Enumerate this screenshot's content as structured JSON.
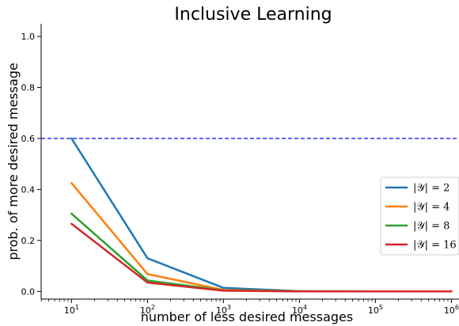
{
  "chart_data": {
    "type": "line",
    "title": "Inclusive Learning",
    "xlabel": "number of less desired messages",
    "ylabel": "prob. of more desired message",
    "xscale": "log",
    "x": [
      10,
      100,
      1000,
      10000,
      100000,
      1000000
    ],
    "x_tick_base": "10",
    "x_tick_exponents": [
      "1",
      "2",
      "3",
      "4",
      "5",
      "6"
    ],
    "ylim": [
      -0.03,
      1.05
    ],
    "y_ticks": [
      "0.0",
      "0.2",
      "0.4",
      "0.6",
      "0.8",
      "1.0"
    ],
    "grid": false,
    "legend_position": "right",
    "reference_line": {
      "y": 0.6,
      "color": "#0000ff",
      "style": "dashed"
    },
    "series": [
      {
        "name": "|𝒴| = 2",
        "color": "#1f77b4",
        "values": [
          0.6,
          0.13,
          0.014,
          0.001,
          0.0,
          0.0
        ]
      },
      {
        "name": "|𝒴| = 4",
        "color": "#ff7f0e",
        "values": [
          0.425,
          0.068,
          0.006,
          0.0,
          0.0,
          0.0
        ]
      },
      {
        "name": "|𝒴| = 8",
        "color": "#2ca02c",
        "values": [
          0.305,
          0.043,
          0.004,
          0.0,
          0.0,
          0.0
        ]
      },
      {
        "name": "|𝒴| = 16",
        "color": "#d62728",
        "values": [
          0.265,
          0.035,
          0.003,
          0.0,
          0.0,
          0.0
        ]
      }
    ]
  }
}
